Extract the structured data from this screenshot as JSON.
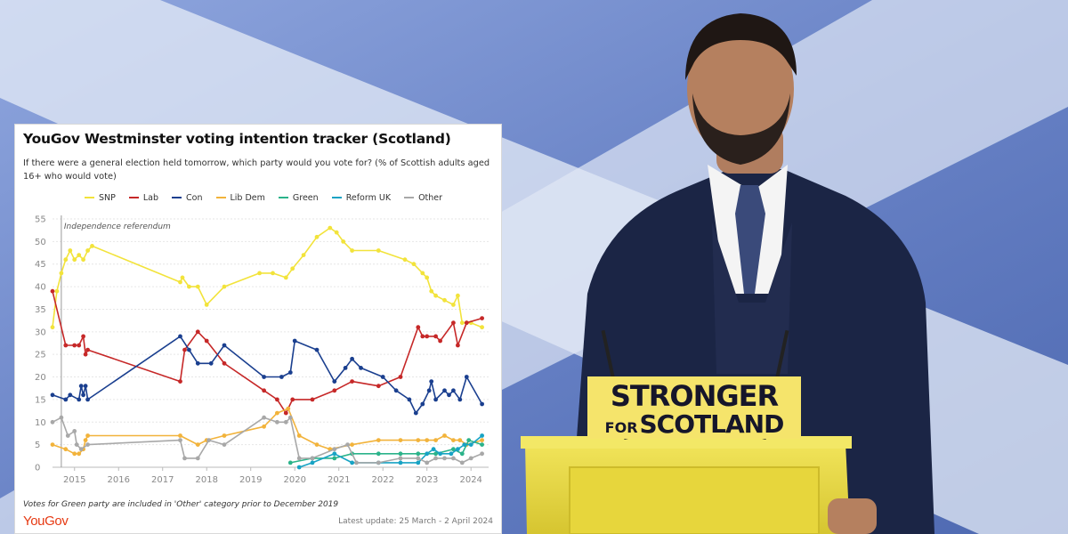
{
  "chart_data": {
    "type": "line",
    "title": "YouGov Westminster voting intention tracker (Scotland)",
    "subtitle": "If there were a general election held tomorrow, which party would you vote for? (% of Scottish adults aged 16+ who would vote)",
    "xlabel": "",
    "ylabel": "",
    "xlim": [
      2014.5,
      2024.4
    ],
    "ylim": [
      0,
      55
    ],
    "x_ticks": [
      "2015",
      "2016",
      "2017",
      "2018",
      "2019",
      "2020",
      "2021",
      "2022",
      "2023",
      "2024"
    ],
    "y_ticks": [
      "0",
      "5",
      "10",
      "15",
      "20",
      "25",
      "30",
      "35",
      "40",
      "45",
      "50",
      "55"
    ],
    "grid": "horizontal",
    "legend": "top",
    "annotation": {
      "x": 2014.7,
      "text": "Independence referendum"
    },
    "series": [
      {
        "name": "SNP",
        "color": "#f2e33b",
        "points": [
          [
            2014.5,
            31
          ],
          [
            2014.6,
            39
          ],
          [
            2014.7,
            43
          ],
          [
            2014.8,
            46
          ],
          [
            2014.9,
            48
          ],
          [
            2015.0,
            46
          ],
          [
            2015.1,
            47
          ],
          [
            2015.2,
            46
          ],
          [
            2015.3,
            48
          ],
          [
            2015.4,
            49
          ],
          [
            2017.4,
            41
          ],
          [
            2017.45,
            42
          ],
          [
            2017.6,
            40
          ],
          [
            2017.8,
            40
          ],
          [
            2018.0,
            36
          ],
          [
            2018.4,
            40
          ],
          [
            2019.2,
            43
          ],
          [
            2019.5,
            43
          ],
          [
            2019.8,
            42
          ],
          [
            2019.95,
            44
          ],
          [
            2020.2,
            47
          ],
          [
            2020.5,
            51
          ],
          [
            2020.8,
            53
          ],
          [
            2020.95,
            52
          ],
          [
            2021.1,
            50
          ],
          [
            2021.3,
            48
          ],
          [
            2021.9,
            48
          ],
          [
            2022.5,
            46
          ],
          [
            2022.7,
            45
          ],
          [
            2022.9,
            43
          ],
          [
            2023.0,
            42
          ],
          [
            2023.1,
            39
          ],
          [
            2023.2,
            38
          ],
          [
            2023.4,
            37
          ],
          [
            2023.6,
            36
          ],
          [
            2023.7,
            38
          ],
          [
            2023.8,
            32
          ],
          [
            2023.9,
            32
          ],
          [
            2024.0,
            32
          ],
          [
            2024.25,
            31
          ]
        ]
      },
      {
        "name": "Lab",
        "color": "#c62828",
        "points": [
          [
            2014.5,
            39
          ],
          [
            2014.8,
            27
          ],
          [
            2015.0,
            27
          ],
          [
            2015.1,
            27
          ],
          [
            2015.2,
            29
          ],
          [
            2015.25,
            25
          ],
          [
            2015.3,
            26
          ],
          [
            2017.4,
            19
          ],
          [
            2017.5,
            26
          ],
          [
            2017.8,
            30
          ],
          [
            2018.0,
            28
          ],
          [
            2018.4,
            23
          ],
          [
            2019.3,
            17
          ],
          [
            2019.6,
            15
          ],
          [
            2019.8,
            12
          ],
          [
            2019.95,
            15
          ],
          [
            2020.4,
            15
          ],
          [
            2020.9,
            17
          ],
          [
            2021.3,
            19
          ],
          [
            2021.9,
            18
          ],
          [
            2022.4,
            20
          ],
          [
            2022.8,
            31
          ],
          [
            2022.9,
            29
          ],
          [
            2023.0,
            29
          ],
          [
            2023.2,
            29
          ],
          [
            2023.3,
            28
          ],
          [
            2023.6,
            32
          ],
          [
            2023.7,
            27
          ],
          [
            2023.9,
            32
          ],
          [
            2024.25,
            33
          ]
        ]
      },
      {
        "name": "Con",
        "color": "#1a3f8f",
        "points": [
          [
            2014.5,
            16
          ],
          [
            2014.8,
            15
          ],
          [
            2014.9,
            16
          ],
          [
            2015.1,
            15
          ],
          [
            2015.15,
            18
          ],
          [
            2015.2,
            16
          ],
          [
            2015.25,
            18
          ],
          [
            2015.3,
            15
          ],
          [
            2017.4,
            29
          ],
          [
            2017.6,
            26
          ],
          [
            2017.8,
            23
          ],
          [
            2018.1,
            23
          ],
          [
            2018.4,
            27
          ],
          [
            2019.3,
            20
          ],
          [
            2019.7,
            20
          ],
          [
            2019.9,
            21
          ],
          [
            2020.0,
            28
          ],
          [
            2020.5,
            26
          ],
          [
            2020.9,
            19
          ],
          [
            2021.15,
            22
          ],
          [
            2021.3,
            24
          ],
          [
            2021.5,
            22
          ],
          [
            2022.0,
            20
          ],
          [
            2022.3,
            17
          ],
          [
            2022.6,
            15
          ],
          [
            2022.75,
            12
          ],
          [
            2022.9,
            14
          ],
          [
            2023.05,
            17
          ],
          [
            2023.1,
            19
          ],
          [
            2023.2,
            15
          ],
          [
            2023.4,
            17
          ],
          [
            2023.5,
            16
          ],
          [
            2023.6,
            17
          ],
          [
            2023.75,
            15
          ],
          [
            2023.9,
            20
          ],
          [
            2024.25,
            14
          ]
        ]
      },
      {
        "name": "Lib Dem",
        "color": "#f2b33b",
        "points": [
          [
            2014.5,
            5
          ],
          [
            2014.8,
            4
          ],
          [
            2015.0,
            3
          ],
          [
            2015.1,
            3
          ],
          [
            2015.2,
            4
          ],
          [
            2015.25,
            6
          ],
          [
            2015.3,
            7
          ],
          [
            2017.4,
            7
          ],
          [
            2017.8,
            5
          ],
          [
            2018.0,
            6
          ],
          [
            2018.4,
            7
          ],
          [
            2019.3,
            9
          ],
          [
            2019.6,
            12
          ],
          [
            2019.85,
            13
          ],
          [
            2020.1,
            7
          ],
          [
            2020.5,
            5
          ],
          [
            2020.8,
            4
          ],
          [
            2021.3,
            5
          ],
          [
            2021.9,
            6
          ],
          [
            2022.4,
            6
          ],
          [
            2022.8,
            6
          ],
          [
            2023.0,
            6
          ],
          [
            2023.2,
            6
          ],
          [
            2023.4,
            7
          ],
          [
            2023.6,
            6
          ],
          [
            2023.75,
            6
          ],
          [
            2023.9,
            5
          ],
          [
            2024.25,
            6
          ]
        ]
      },
      {
        "name": "Green",
        "color": "#2bb38a",
        "points": [
          [
            2019.9,
            1
          ],
          [
            2020.4,
            2
          ],
          [
            2020.9,
            2
          ],
          [
            2021.3,
            3
          ],
          [
            2021.9,
            3
          ],
          [
            2022.4,
            3
          ],
          [
            2022.8,
            3
          ],
          [
            2023.2,
            3
          ],
          [
            2023.6,
            4
          ],
          [
            2023.8,
            3
          ],
          [
            2023.95,
            6
          ],
          [
            2024.25,
            5
          ]
        ]
      },
      {
        "name": "Reform UK",
        "color": "#17a3c4",
        "points": [
          [
            2020.1,
            0
          ],
          [
            2020.4,
            1
          ],
          [
            2020.9,
            3
          ],
          [
            2021.3,
            1
          ],
          [
            2021.9,
            1
          ],
          [
            2022.4,
            1
          ],
          [
            2022.8,
            1
          ],
          [
            2023.0,
            3
          ],
          [
            2023.15,
            4
          ],
          [
            2023.3,
            3
          ],
          [
            2023.55,
            3
          ],
          [
            2023.7,
            4
          ],
          [
            2023.85,
            5
          ],
          [
            2024.0,
            5
          ],
          [
            2024.25,
            7
          ]
        ]
      },
      {
        "name": "Other",
        "color": "#a8a8a8",
        "points": [
          [
            2014.5,
            10
          ],
          [
            2014.7,
            11
          ],
          [
            2014.85,
            7
          ],
          [
            2015.0,
            8
          ],
          [
            2015.05,
            5
          ],
          [
            2015.15,
            4
          ],
          [
            2015.3,
            5
          ],
          [
            2017.4,
            6
          ],
          [
            2017.5,
            2
          ],
          [
            2017.8,
            2
          ],
          [
            2018.05,
            6
          ],
          [
            2018.4,
            5
          ],
          [
            2019.3,
            11
          ],
          [
            2019.6,
            10
          ],
          [
            2019.8,
            10
          ],
          [
            2019.9,
            11
          ],
          [
            2020.1,
            2
          ],
          [
            2020.4,
            2
          ],
          [
            2020.9,
            4
          ],
          [
            2021.2,
            5
          ],
          [
            2021.4,
            1
          ],
          [
            2021.9,
            1
          ],
          [
            2022.4,
            2
          ],
          [
            2022.8,
            2
          ],
          [
            2023.0,
            1
          ],
          [
            2023.2,
            2
          ],
          [
            2023.4,
            2
          ],
          [
            2023.6,
            2
          ],
          [
            2023.8,
            1
          ],
          [
            2024.0,
            2
          ],
          [
            2024.25,
            3
          ]
        ]
      }
    ],
    "footnote": "Votes for Green party are included in 'Other' category prior to December 2019",
    "source_logo": "YouGov",
    "latest_update": "Latest update: 25 March - 2 April 2024"
  },
  "podium": {
    "line1": "STRONGER",
    "line2_prefix": "FOR",
    "line2_main": "SCOTLAND",
    "colors": {
      "sign": "#f5e46b",
      "text": "#16162a"
    }
  },
  "colors": {
    "flag_blue": "#5b79c2",
    "saltire": "#e8eef8",
    "suit": "#1b2545",
    "podium": "#e8d640"
  }
}
